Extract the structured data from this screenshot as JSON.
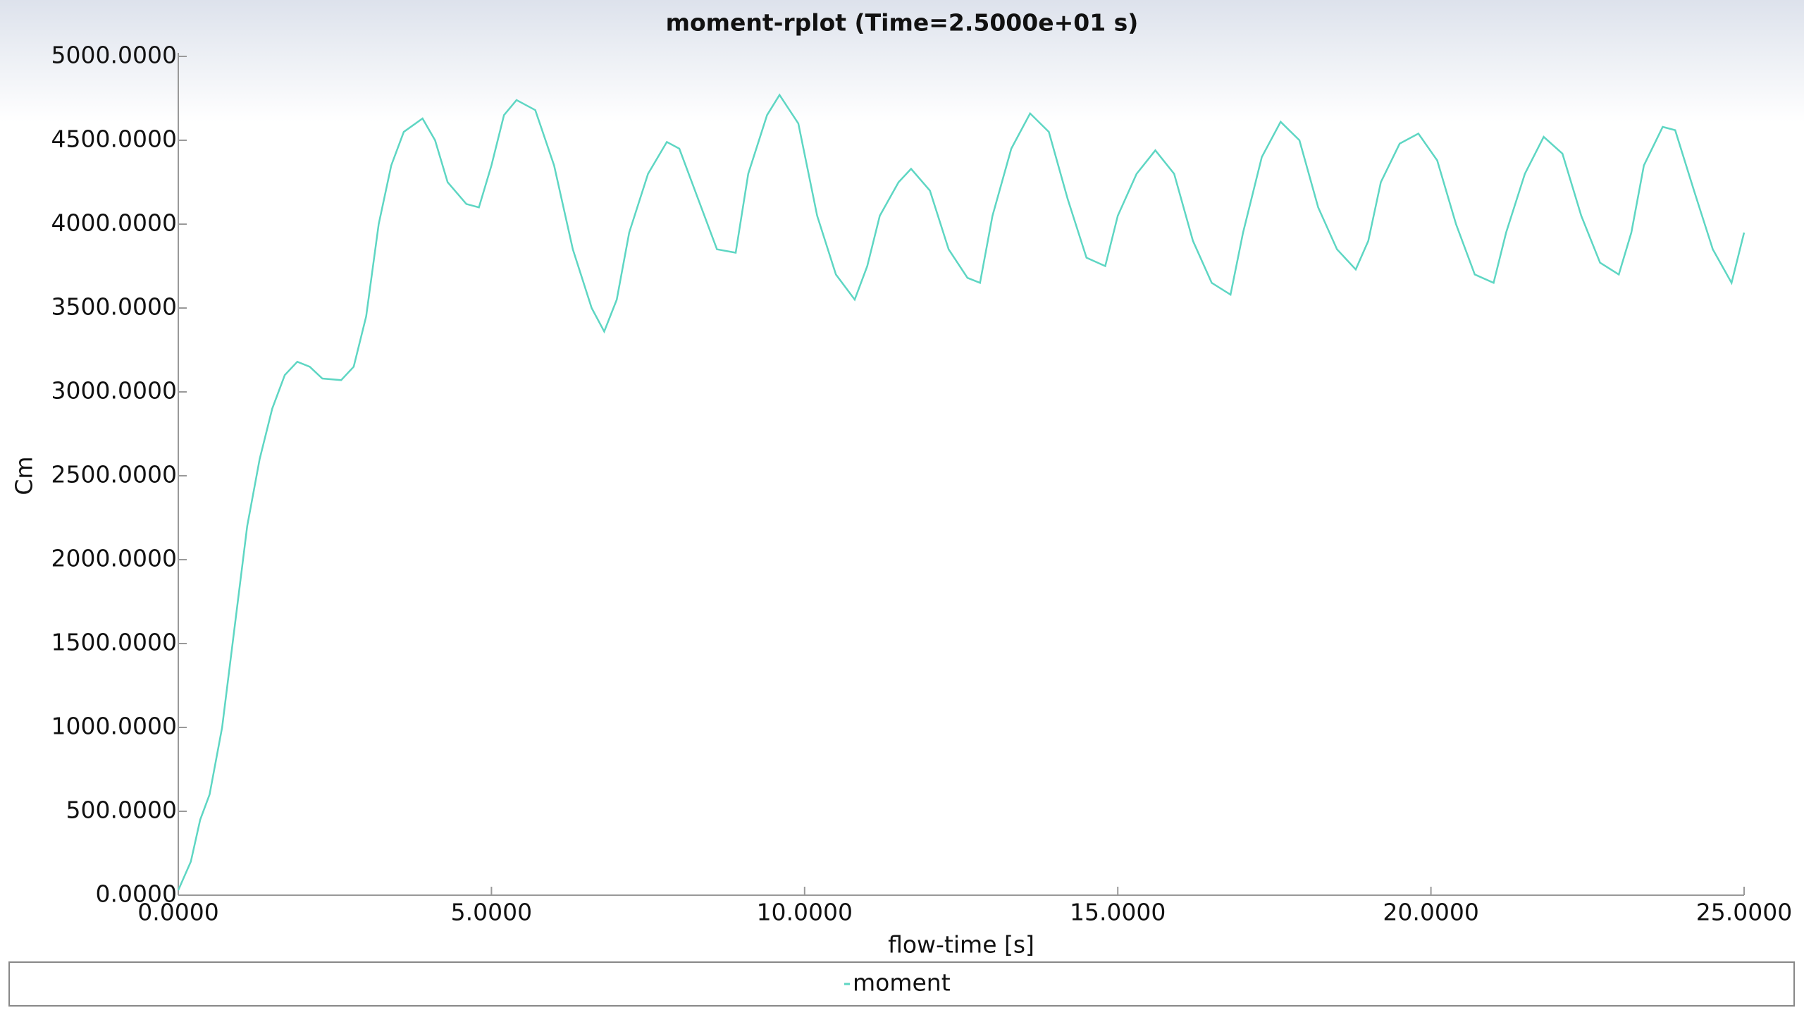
{
  "chart_data": {
    "type": "line",
    "title": "moment-rplot (Time=2.5000e+01 s)",
    "x_label": "flow-time [s]",
    "y_label": "Cm",
    "xlim": [
      0,
      25
    ],
    "ylim": [
      0,
      5000
    ],
    "xticks": [
      {
        "value": 0,
        "label": "0.0000"
      },
      {
        "value": 5,
        "label": "5.0000"
      },
      {
        "value": 10,
        "label": "10.0000"
      },
      {
        "value": 15,
        "label": "15.0000"
      },
      {
        "value": 20,
        "label": "20.0000"
      },
      {
        "value": 25,
        "label": "25.0000"
      }
    ],
    "yticks": [
      {
        "value": 0,
        "label": "0.0000"
      },
      {
        "value": 500,
        "label": "500.0000"
      },
      {
        "value": 1000,
        "label": "1000.0000"
      },
      {
        "value": 1500,
        "label": "1500.0000"
      },
      {
        "value": 2000,
        "label": "2000.0000"
      },
      {
        "value": 2500,
        "label": "2500.0000"
      },
      {
        "value": 3000,
        "label": "3000.0000"
      },
      {
        "value": 3500,
        "label": "3500.0000"
      },
      {
        "value": 4000,
        "label": "4000.0000"
      },
      {
        "value": 4500,
        "label": "4500.0000"
      },
      {
        "value": 5000,
        "label": "5000.0000"
      }
    ],
    "grid": false,
    "series": [
      {
        "name": "moment",
        "color": "#5ed6c3",
        "x": [
          0,
          0.2,
          0.35,
          0.5,
          0.7,
          0.9,
          1.1,
          1.3,
          1.5,
          1.7,
          1.9,
          2.1,
          2.3,
          2.6,
          2.8,
          3.0,
          3.2,
          3.4,
          3.6,
          3.9,
          4.1,
          4.3,
          4.6,
          4.8,
          5.0,
          5.2,
          5.4,
          5.7,
          6.0,
          6.3,
          6.6,
          6.8,
          7.0,
          7.2,
          7.5,
          7.8,
          8.0,
          8.3,
          8.6,
          8.9,
          9.1,
          9.4,
          9.6,
          9.9,
          10.2,
          10.5,
          10.8,
          11.0,
          11.2,
          11.5,
          11.7,
          12.0,
          12.3,
          12.6,
          12.8,
          13.0,
          13.3,
          13.6,
          13.9,
          14.2,
          14.5,
          14.8,
          15.0,
          15.3,
          15.6,
          15.9,
          16.2,
          16.5,
          16.8,
          17.0,
          17.3,
          17.6,
          17.9,
          18.2,
          18.5,
          18.8,
          19.0,
          19.2,
          19.5,
          19.8,
          20.1,
          20.4,
          20.7,
          21.0,
          21.2,
          21.5,
          21.8,
          22.1,
          22.4,
          22.7,
          23.0,
          23.2,
          23.4,
          23.7,
          23.9,
          24.2,
          24.5,
          24.8,
          25.0
        ],
        "values": [
          30,
          200,
          450,
          600,
          1000,
          1600,
          2200,
          2600,
          2900,
          3100,
          3180,
          3150,
          3080,
          3070,
          3150,
          3450,
          4000,
          4350,
          4550,
          4630,
          4500,
          4250,
          4120,
          4100,
          4350,
          4650,
          4740,
          4680,
          4350,
          3850,
          3500,
          3360,
          3550,
          3950,
          4300,
          4490,
          4450,
          4150,
          3850,
          3830,
          4300,
          4650,
          4770,
          4600,
          4050,
          3700,
          3550,
          3750,
          4050,
          4250,
          4330,
          4200,
          3850,
          3680,
          3650,
          4050,
          4450,
          4660,
          4550,
          4150,
          3800,
          3750,
          4050,
          4300,
          4440,
          4300,
          3900,
          3650,
          3580,
          3950,
          4400,
          4610,
          4500,
          4100,
          3850,
          3730,
          3900,
          4250,
          4480,
          4540,
          4380,
          4000,
          3700,
          3650,
          3950,
          4300,
          4520,
          4420,
          4050,
          3770,
          3700,
          3950,
          4350,
          4580,
          4560,
          4200,
          3850,
          3650,
          3950
        ]
      }
    ]
  }
}
